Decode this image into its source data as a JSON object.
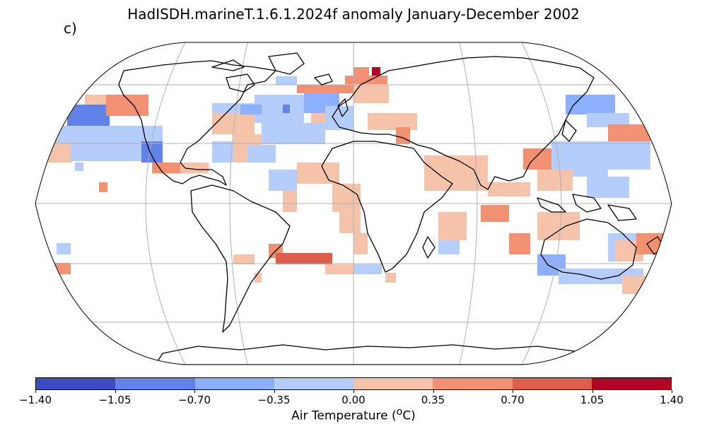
{
  "title": "HadISDH.marineT.1.6.1.2024f anomaly January-December 2002",
  "panel_label": "c)",
  "colorbar": {
    "label_main": "Air Temperature (",
    "label_sup": "o",
    "label_end": "C)",
    "ticks": [
      "−1.40",
      "−1.05",
      "−0.70",
      "−0.35",
      "0.00",
      "0.35",
      "0.70",
      "1.05",
      "1.40"
    ],
    "colors": [
      "#3b4cc0",
      "#6282ea",
      "#8db0fe",
      "#b5cdfa",
      "#f5c2aa",
      "#f29072",
      "#dc5e4b",
      "#b40426"
    ]
  },
  "map": {
    "projection": "Robinson",
    "gridlines": true
  }
}
